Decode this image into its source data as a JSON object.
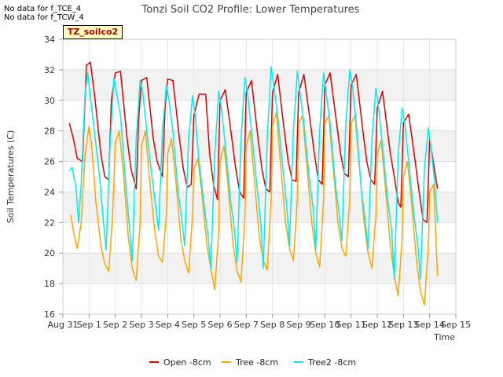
{
  "notes": [
    "No data for f_TCE_4",
    "No data for f_TCW_4"
  ],
  "site_label": "TZ_soilco2",
  "chart_data": {
    "type": "line",
    "title": "Tonzi Soil CO2 Profile: Lower Temperatures",
    "xlabel": "Time",
    "ylabel": "Soil Temperatures (C)",
    "xlim": [
      0,
      15
    ],
    "ylim": [
      16,
      34
    ],
    "yticks": [
      16,
      18,
      20,
      22,
      24,
      26,
      28,
      30,
      32,
      34
    ],
    "xticks": [
      0,
      1,
      2,
      3,
      4,
      5,
      6,
      7,
      8,
      9,
      10,
      11,
      12,
      13,
      14,
      15
    ],
    "xtick_labels": [
      "Aug 31",
      "Sep 1",
      "Sep 2",
      "Sep 3",
      "Sep 4",
      "Sep 5",
      "Sep 6",
      "Sep 7",
      "Sep 8",
      "Sep 9",
      "Sep 10",
      "Sep 11",
      "Sep 12",
      "Sep 13",
      "Sep 14",
      "Sep 15"
    ],
    "grid": true,
    "legend_position": "bottom",
    "series": [
      {
        "name": "Open -8cm",
        "color": "#dd0000",
        "x": [
          0.25,
          0.4,
          0.55,
          0.75,
          0.9,
          1.05,
          1.2,
          1.45,
          1.6,
          1.75,
          1.85,
          2.0,
          2.2,
          2.45,
          2.6,
          2.8,
          2.9,
          3.0,
          3.2,
          3.45,
          3.6,
          3.8,
          3.9,
          4.0,
          4.2,
          4.45,
          4.6,
          4.75,
          4.9,
          5.0,
          5.2,
          5.45,
          5.6,
          5.75,
          5.9,
          6.0,
          6.2,
          6.45,
          6.6,
          6.75,
          6.9,
          7.0,
          7.2,
          7.45,
          7.6,
          7.75,
          7.9,
          8.0,
          8.2,
          8.45,
          8.6,
          8.75,
          8.9,
          9.0,
          9.2,
          9.45,
          9.6,
          9.75,
          9.9,
          10.0,
          10.2,
          10.45,
          10.6,
          10.75,
          10.9,
          11.0,
          11.2,
          11.45,
          11.6,
          11.75,
          11.9,
          12.0,
          12.2,
          12.5,
          12.65,
          12.8,
          12.9,
          13.0,
          13.2,
          13.45,
          13.6,
          13.75,
          13.9,
          14.0,
          14.3
        ],
        "y": [
          28.5,
          27.5,
          26.2,
          26.0,
          32.3,
          32.5,
          30.5,
          26.5,
          25.0,
          24.8,
          30.0,
          31.8,
          31.9,
          27.5,
          25.5,
          24.2,
          29.0,
          31.3,
          31.5,
          27.5,
          26.0,
          25.0,
          29.5,
          31.4,
          31.3,
          27.5,
          25.5,
          24.3,
          24.5,
          29.0,
          30.4,
          30.4,
          26.5,
          24.5,
          23.5,
          30.0,
          30.7,
          27.5,
          25.5,
          24.0,
          23.6,
          30.5,
          31.3,
          27.5,
          25.5,
          24.2,
          24.0,
          30.5,
          31.7,
          28.0,
          26.0,
          24.8,
          24.7,
          30.5,
          31.7,
          28.5,
          26.5,
          24.8,
          24.5,
          31.0,
          31.8,
          28.5,
          26.5,
          25.2,
          25.0,
          31.0,
          31.7,
          28.0,
          26.0,
          24.8,
          24.5,
          29.5,
          30.6,
          26.5,
          25.0,
          23.3,
          23.0,
          28.5,
          29.1,
          26.0,
          24.0,
          22.2,
          22.0,
          27.5,
          24.2
        ]
      },
      {
        "name": "Tree -8cm",
        "color": "#ffa500",
        "x": [
          0.3,
          0.45,
          0.55,
          0.7,
          0.85,
          1.0,
          1.1,
          1.25,
          1.45,
          1.6,
          1.75,
          1.9,
          2.0,
          2.15,
          2.3,
          2.5,
          2.65,
          2.8,
          2.95,
          3.0,
          3.15,
          3.3,
          3.5,
          3.65,
          3.8,
          3.95,
          4.0,
          4.15,
          4.3,
          4.5,
          4.65,
          4.8,
          4.95,
          5.0,
          5.15,
          5.3,
          5.5,
          5.65,
          5.8,
          5.95,
          6.0,
          6.15,
          6.3,
          6.5,
          6.65,
          6.8,
          6.95,
          7.0,
          7.15,
          7.3,
          7.5,
          7.65,
          7.8,
          7.95,
          8.0,
          8.15,
          8.3,
          8.5,
          8.65,
          8.8,
          8.95,
          9.0,
          9.15,
          9.3,
          9.5,
          9.65,
          9.8,
          9.95,
          10.0,
          10.15,
          10.3,
          10.5,
          10.65,
          10.8,
          10.95,
          11.0,
          11.15,
          11.3,
          11.5,
          11.65,
          11.8,
          11.95,
          12.0,
          12.15,
          12.3,
          12.5,
          12.65,
          12.8,
          12.95,
          13.0,
          13.15,
          13.3,
          13.5,
          13.65,
          13.8,
          13.95,
          14.0,
          14.15,
          14.3
        ],
        "y": [
          22.5,
          21.0,
          20.3,
          22.0,
          26.5,
          28.3,
          27.0,
          23.5,
          20.5,
          19.3,
          18.8,
          22.5,
          27.2,
          28.0,
          25.5,
          21.0,
          19.0,
          18.2,
          22.0,
          27.0,
          28.0,
          25.0,
          21.5,
          19.8,
          19.4,
          22.5,
          26.5,
          27.5,
          25.0,
          21.0,
          19.5,
          18.7,
          22.5,
          25.5,
          26.2,
          24.0,
          20.5,
          19.0,
          17.6,
          21.5,
          26.0,
          27.0,
          24.5,
          20.5,
          18.8,
          18.1,
          22.5,
          27.0,
          28.0,
          25.0,
          21.0,
          19.5,
          18.9,
          23.5,
          28.3,
          29.2,
          26.0,
          22.0,
          20.3,
          19.5,
          23.5,
          28.5,
          29.0,
          26.0,
          22.0,
          20.0,
          19.1,
          23.5,
          28.5,
          29.0,
          26.0,
          22.0,
          20.3,
          19.8,
          23.5,
          28.5,
          29.0,
          26.0,
          22.0,
          20.0,
          19.0,
          22.5,
          26.5,
          27.4,
          24.5,
          20.5,
          18.5,
          17.2,
          21.0,
          25.0,
          26.0,
          23.5,
          19.5,
          17.5,
          16.6,
          20.5,
          24.0,
          24.5,
          18.5
        ]
      },
      {
        "name": "Tree2 -8cm",
        "color": "#00eeee",
        "x": [
          0.25,
          0.35,
          0.5,
          0.6,
          0.7,
          0.85,
          0.95,
          1.05,
          1.2,
          1.4,
          1.55,
          1.65,
          1.8,
          1.95,
          2.05,
          2.2,
          2.4,
          2.55,
          2.65,
          2.8,
          2.95,
          3.05,
          3.2,
          3.4,
          3.55,
          3.65,
          3.8,
          3.95,
          4.05,
          4.2,
          4.4,
          4.55,
          4.65,
          4.8,
          4.95,
          5.05,
          5.2,
          5.4,
          5.55,
          5.65,
          5.8,
          5.95,
          6.05,
          6.2,
          6.4,
          6.55,
          6.65,
          6.8,
          6.95,
          7.05,
          7.2,
          7.4,
          7.55,
          7.65,
          7.8,
          7.95,
          8.05,
          8.2,
          8.4,
          8.55,
          8.65,
          8.8,
          8.95,
          9.05,
          9.2,
          9.4,
          9.55,
          9.65,
          9.8,
          9.95,
          10.05,
          10.2,
          10.4,
          10.55,
          10.65,
          10.8,
          10.95,
          11.05,
          11.2,
          11.4,
          11.55,
          11.65,
          11.8,
          11.95,
          12.05,
          12.2,
          12.4,
          12.55,
          12.65,
          12.8,
          12.95,
          13.05,
          13.2,
          13.4,
          13.55,
          13.65,
          13.8,
          13.95,
          14.05,
          14.2,
          14.3
        ],
        "y": [
          25.4,
          25.6,
          24.3,
          22.0,
          24.5,
          30.5,
          31.8,
          30.2,
          28.0,
          25.0,
          22.0,
          20.2,
          27.0,
          31.5,
          30.5,
          29.0,
          24.5,
          21.5,
          19.5,
          27.5,
          31.3,
          30.5,
          28.0,
          25.0,
          23.0,
          21.5,
          28.0,
          31.0,
          30.0,
          28.0,
          24.0,
          22.0,
          20.5,
          27.5,
          30.3,
          29.0,
          26.0,
          23.0,
          21.0,
          19.0,
          26.5,
          30.6,
          29.5,
          27.0,
          23.5,
          21.5,
          19.4,
          27.5,
          31.5,
          30.5,
          28.0,
          24.5,
          22.0,
          19.0,
          27.5,
          32.2,
          31.0,
          29.0,
          25.5,
          23.0,
          20.5,
          28.0,
          31.9,
          30.5,
          28.5,
          25.0,
          23.0,
          20.2,
          28.0,
          31.8,
          30.5,
          28.5,
          24.5,
          22.5,
          20.8,
          28.5,
          32.0,
          31.0,
          28.5,
          24.0,
          22.0,
          20.3,
          27.5,
          30.8,
          29.5,
          27.0,
          23.5,
          21.5,
          18.3,
          26.5,
          29.5,
          28.5,
          26.0,
          22.5,
          20.5,
          18.3,
          25.5,
          28.2,
          27.0,
          24.5,
          22.0
        ]
      }
    ]
  }
}
